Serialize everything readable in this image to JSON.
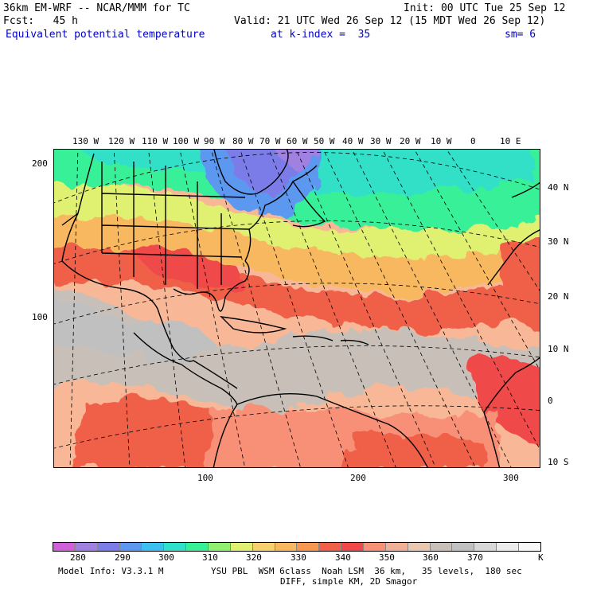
{
  "header": {
    "model_line": "36km EM-WRF -- NCAR/MMM for TC",
    "init_line": "Init: 00 UTC Tue 25 Sep 12",
    "fcst_line": "Fcst:   45 h",
    "valid_line": "Valid: 21 UTC Wed 26 Sep 12 (15 MDT Wed 26 Sep 12)",
    "field_name": "Equivalent potential temperature",
    "level": "at k-index =  35",
    "smoothing": "sm= 6"
  },
  "map": {
    "top_lon_labels": [
      "130 W",
      "120 W",
      "110 W",
      "100 W",
      "90 W",
      "80 W",
      "70 W",
      "60 W",
      "50 W",
      "40 W",
      "30 W",
      "20 W",
      "10 W",
      "0",
      "10 E"
    ],
    "right_lat_labels": [
      "40 N",
      "30 N",
      "20 N",
      "10 N",
      "0",
      "10 S"
    ],
    "left_grid_labels": [
      "200",
      "100"
    ],
    "bottom_grid_labels": [
      "100",
      "200",
      "300"
    ]
  },
  "legend": {
    "colors": [
      "#d060d8",
      "#a080e0",
      "#7c7ce8",
      "#5c98f0",
      "#3cc0f0",
      "#30e0c8",
      "#38f098",
      "#90f070",
      "#e0f070",
      "#f8d070",
      "#f8b860",
      "#f89850",
      "#f06048",
      "#f04848",
      "#f89078",
      "#f0b098",
      "#e8c8b0",
      "#c8c0b8",
      "#c0c0c0",
      "#d8d8d8",
      "#ececec",
      "#f8f8f8"
    ],
    "labels": [
      "280",
      "290",
      "300",
      "310",
      "320",
      "330",
      "340",
      "350",
      "360",
      "370",
      "K"
    ]
  },
  "footer": {
    "model_info": "Model Info: V3.3.1 M",
    "physics": "YSU PBL  WSM 6class  Noah LSM  36 km,   35 levels,  180 sec",
    "diff": "DIFF, simple KM, 2D Smagor"
  }
}
